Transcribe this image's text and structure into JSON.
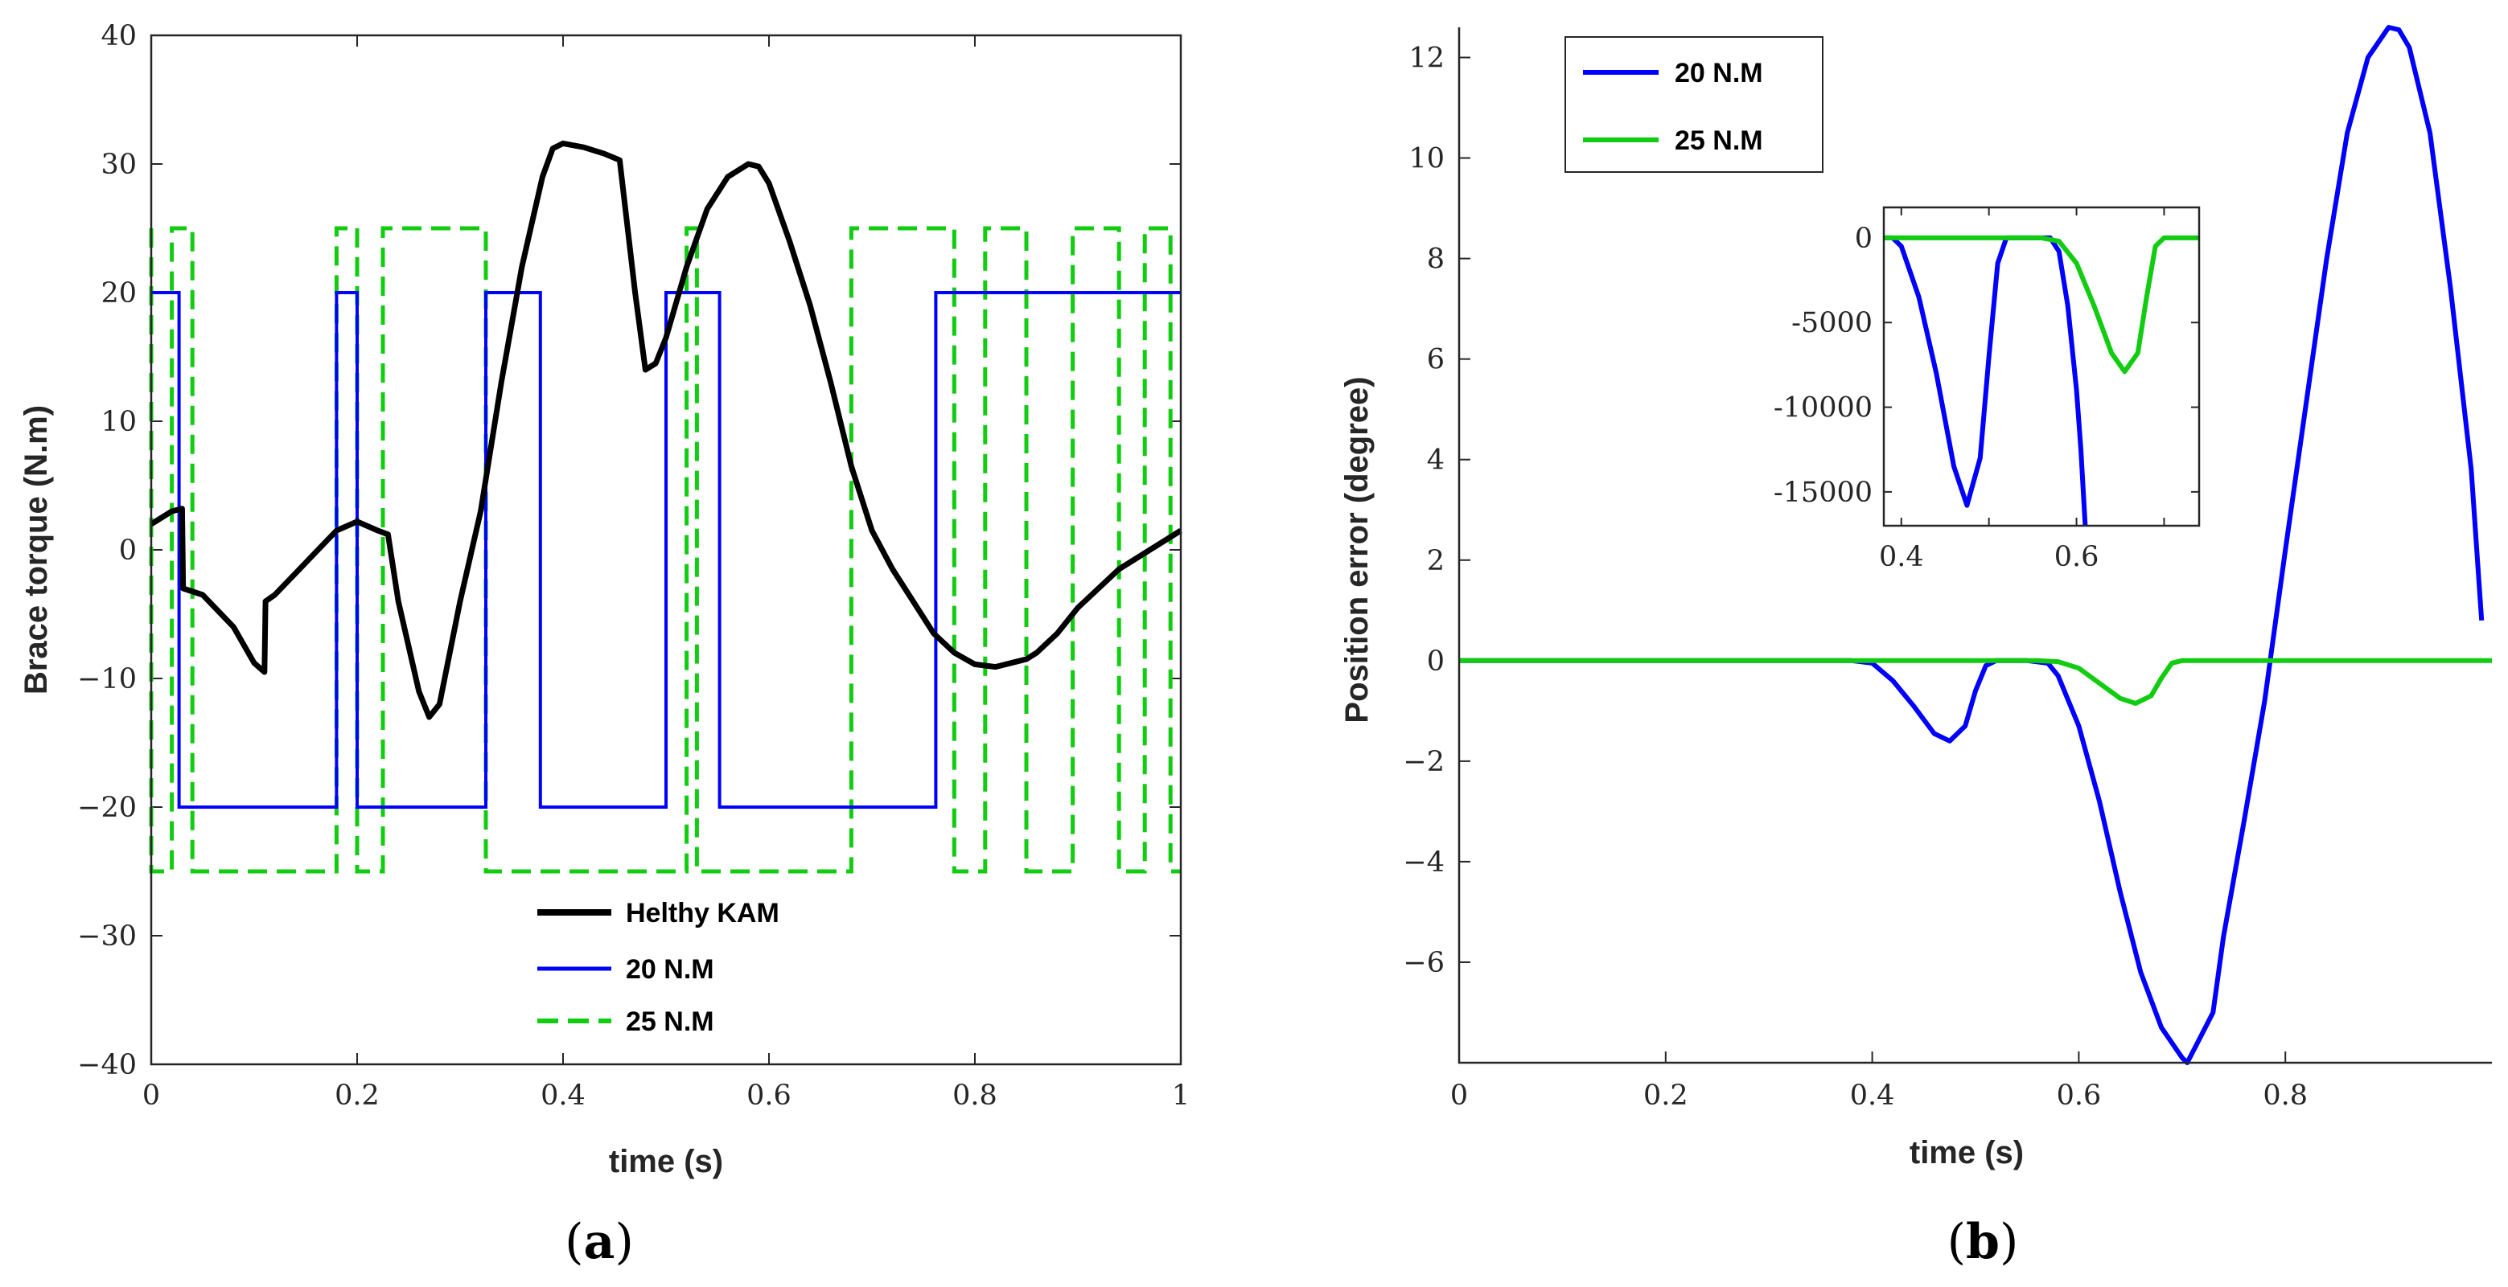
{
  "colors": {
    "black": "#000000",
    "blue": "#0000FF",
    "green": "#11CC11",
    "axis": "#262626"
  },
  "captions": {
    "a_open": "(",
    "a_letter": "a",
    "a_close": ")",
    "b_open": "(",
    "b_letter": "b",
    "b_close": ")"
  },
  "chart_data": [
    {
      "id": "a",
      "type": "line",
      "xlabel": "time (s)",
      "ylabel": "Brace torque (N.m)",
      "xlim": [
        0,
        1
      ],
      "ylim": [
        -40,
        40
      ],
      "xticks": [
        0,
        0.2,
        0.4,
        0.6,
        0.8,
        1
      ],
      "xtick_labels": [
        "0",
        "0.2",
        "0.4",
        "0.6",
        "0.8",
        "1"
      ],
      "yticks": [
        -40,
        -30,
        -20,
        -10,
        0,
        10,
        20,
        30,
        40
      ],
      "ytick_labels": [
        "−40",
        "−30",
        "−20",
        "−10",
        "0",
        "10",
        "20",
        "30",
        "40"
      ],
      "legend": [
        "Helthy KAM",
        "20 N.M",
        "25 N.M"
      ],
      "series": [
        {
          "name": "Helthy KAM",
          "color": "#000000",
          "style": "solid",
          "x": [
            0,
            0.01,
            0.02,
            0.03,
            0.031,
            0.05,
            0.08,
            0.1,
            0.11,
            0.111,
            0.12,
            0.15,
            0.18,
            0.2,
            0.22,
            0.23,
            0.24,
            0.26,
            0.27,
            0.28,
            0.3,
            0.32,
            0.34,
            0.36,
            0.38,
            0.39,
            0.4,
            0.42,
            0.44,
            0.455,
            0.47,
            0.48,
            0.49,
            0.5,
            0.52,
            0.54,
            0.56,
            0.58,
            0.59,
            0.6,
            0.62,
            0.64,
            0.66,
            0.68,
            0.7,
            0.72,
            0.74,
            0.76,
            0.78,
            0.8,
            0.82,
            0.84,
            0.85,
            0.86,
            0.88,
            0.9,
            0.92,
            0.94,
            0.96,
            0.98,
            1.0
          ],
          "y": [
            2,
            2.5,
            3,
            3.2,
            -3,
            -3.5,
            -6,
            -8.8,
            -9.5,
            -4,
            -3.5,
            -1,
            1.5,
            2.2,
            1.5,
            1.2,
            -4,
            -11,
            -13,
            -12,
            -4,
            3,
            13,
            22,
            29,
            31.2,
            31.6,
            31.3,
            30.8,
            30.3,
            20,
            14,
            14.5,
            16.5,
            22,
            26.5,
            29,
            30,
            29.8,
            28.5,
            24,
            19,
            13,
            6.5,
            1.5,
            -1.5,
            -4,
            -6.5,
            -8,
            -8.9,
            -9.1,
            -8.7,
            -8.5,
            -8,
            -6.5,
            -4.5,
            -3,
            -1.5,
            -0.5,
            0.5,
            1.5
          ]
        },
        {
          "name": "20 N.M",
          "color": "#0000FF",
          "style": "solid",
          "step": true,
          "transitions": [
            0,
            0.027,
            0.18,
            0.2,
            0.325,
            0.378,
            0.5,
            0.552,
            0.762,
            1.0
          ],
          "levels": [
            20,
            -20,
            20,
            -20,
            20,
            -20,
            20,
            -20,
            20
          ],
          "start": 20,
          "end": 20
        },
        {
          "name": "25 N.M",
          "color": "#11CC11",
          "style": "dashed",
          "step": true,
          "transitions": [
            0,
            0.0,
            0.02,
            0.04,
            0.18,
            0.2,
            0.225,
            0.325,
            0.52,
            0.53,
            0.68,
            0.78,
            0.81,
            0.85,
            0.895,
            0.94,
            0.965,
            0.99
          ],
          "levels": [
            25,
            -25,
            25,
            -25,
            25,
            -25,
            25,
            -25,
            25,
            -25,
            25,
            -25,
            25,
            -25,
            25,
            -25,
            25,
            -25
          ],
          "start": 25,
          "end": -25
        }
      ]
    },
    {
      "id": "b",
      "type": "line",
      "xlabel": "time (s)",
      "ylabel": "Position error (degree)",
      "xlim": [
        0,
        1
      ],
      "ylim": [
        -8,
        12.6
      ],
      "xticks": [
        0,
        0.2,
        0.4,
        0.6,
        0.8
      ],
      "xtick_labels": [
        "0",
        "0.2",
        "0.4",
        "0.6",
        "0.8"
      ],
      "yticks": [
        -6,
        -4,
        -2,
        0,
        2,
        4,
        6,
        8,
        10,
        12
      ],
      "ytick_labels": [
        "−6",
        "−4",
        "−2",
        "0",
        "2",
        "4",
        "6",
        "8",
        "10",
        "12"
      ],
      "legend": [
        "20 N.M",
        "25 N.M"
      ],
      "series": [
        {
          "name": "20 N.M",
          "color": "#0000FF",
          "style": "solid",
          "x": [
            0,
            0.38,
            0.4,
            0.42,
            0.44,
            0.46,
            0.475,
            0.49,
            0.5,
            0.51,
            0.52,
            0.55,
            0.57,
            0.58,
            0.6,
            0.62,
            0.64,
            0.66,
            0.68,
            0.7,
            0.705,
            0.72,
            0.73,
            0.74,
            0.76,
            0.78,
            0.8,
            0.82,
            0.84,
            0.86,
            0.88,
            0.9,
            0.91,
            0.92,
            0.94,
            0.96,
            0.98,
            0.99
          ],
          "y": [
            0,
            0,
            -0.05,
            -0.4,
            -0.9,
            -1.45,
            -1.6,
            -1.3,
            -0.6,
            -0.1,
            0,
            0,
            -0.05,
            -0.3,
            -1.3,
            -2.8,
            -4.6,
            -6.2,
            -7.3,
            -7.9,
            -8,
            -7.4,
            -7.0,
            -5.5,
            -3.2,
            -0.8,
            2.2,
            5.1,
            8.0,
            10.5,
            12.0,
            12.6,
            12.55,
            12.2,
            10.5,
            7.4,
            3.8,
            0.8
          ]
        },
        {
          "name": "25 N.M",
          "color": "#11CC11",
          "style": "solid",
          "x": [
            0,
            0.56,
            0.58,
            0.6,
            0.62,
            0.64,
            0.655,
            0.67,
            0.68,
            0.69,
            0.7,
            1.0
          ],
          "y": [
            0,
            0,
            -0.02,
            -0.15,
            -0.45,
            -0.75,
            -0.85,
            -0.7,
            -0.35,
            -0.05,
            0,
            0
          ]
        }
      ],
      "inset": {
        "xlim": [
          0.38,
          0.74
        ],
        "ylim": [
          -17000,
          1800
        ],
        "xticks": [
          0.4,
          0.5,
          0.6,
          0.7
        ],
        "xtick_labels": [
          "0.4",
          "",
          "0.6",
          ""
        ],
        "yticks": [
          -15000,
          -10000,
          -5000,
          0
        ],
        "ytick_labels": [
          "-15000",
          "-10000",
          "-5000",
          "0"
        ],
        "series": [
          {
            "name": "20 N.M",
            "color": "#0000FF",
            "x": [
              0.38,
              0.39,
              0.4,
              0.42,
              0.44,
              0.46,
              0.475,
              0.49,
              0.5,
              0.51,
              0.52,
              0.55,
              0.57,
              0.58,
              0.59,
              0.6,
              0.605,
              0.61
            ],
            "y": [
              0,
              0,
              -500,
              -3500,
              -8000,
              -13500,
              -15800,
              -13000,
              -7000,
              -1500,
              0,
              0,
              0,
              -800,
              -4000,
              -9000,
              -12500,
              -17000
            ]
          },
          {
            "name": "25 N.M",
            "color": "#11CC11",
            "x": [
              0.38,
              0.56,
              0.58,
              0.6,
              0.62,
              0.64,
              0.655,
              0.67,
              0.68,
              0.69,
              0.7,
              0.74
            ],
            "y": [
              0,
              0,
              -200,
              -1500,
              -4000,
              -6800,
              -7900,
              -6800,
              -3500,
              -500,
              0,
              0
            ]
          }
        ]
      }
    }
  ]
}
